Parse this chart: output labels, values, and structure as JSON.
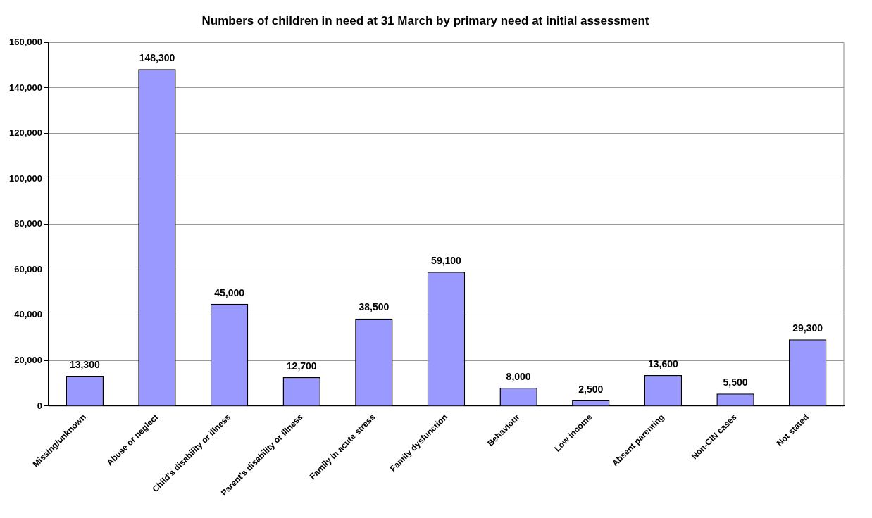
{
  "chart_data": {
    "type": "bar",
    "title": "Numbers of children in need at 31 March by primary need at initial assessment",
    "categories": [
      "Missing/unknown",
      "Abuse or neglect",
      "Child's disability or illness",
      "Parent's disability or illness",
      "Family in acute stress",
      "Family dysfunction",
      "Behaviour",
      "Low income",
      "Absent parenting",
      "Non-CIN cases",
      "Not stated"
    ],
    "values": [
      13300,
      148300,
      45000,
      12700,
      38500,
      59100,
      8000,
      2500,
      13600,
      5500,
      29300
    ],
    "value_labels": [
      "13,300",
      "148,300",
      "45,000",
      "12,700",
      "38,500",
      "59,100",
      "8,000",
      "2,500",
      "13,600",
      "5,500",
      "29,300"
    ],
    "color": "#9999ff",
    "ylim": [
      0,
      160000
    ],
    "yticks": [
      0,
      {
        "value": 20000,
        "label": "20,000"
      },
      {
        "value": 40000,
        "label": "40,000"
      },
      {
        "value": 60000,
        "label": "60,000"
      },
      {
        "value": 80000,
        "label": "80,000"
      },
      {
        "value": 100000,
        "label": "100,000"
      },
      {
        "value": 120000,
        "label": "120,000"
      },
      {
        "value": 140000,
        "label": "140,000"
      },
      {
        "value": 160000,
        "label": "160,000"
      }
    ],
    "grid": "y",
    "legend": false
  }
}
